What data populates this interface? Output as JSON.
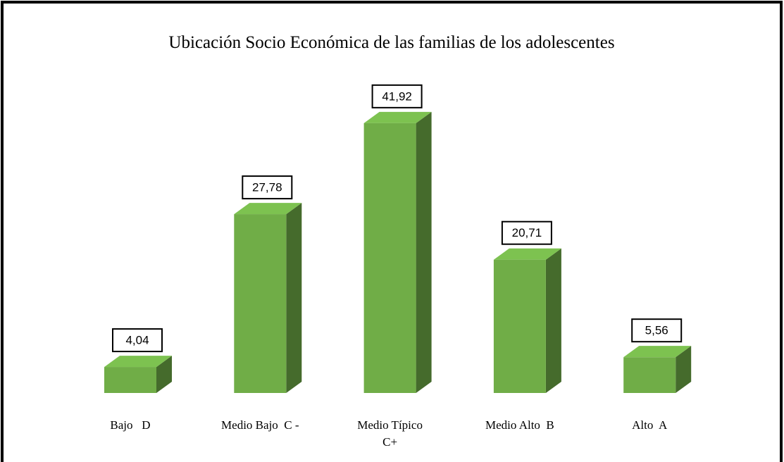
{
  "chart_data": {
    "type": "bar3d",
    "title": "Ubicación Socio Económica de las familias de los adolescentes",
    "categories": [
      "Bajo   D",
      "Medio Bajo  C -",
      "Medio Típico\nC+",
      "Medio Alto  B",
      "Alto  A"
    ],
    "values": [
      4.04,
      27.78,
      41.92,
      20.71,
      5.56
    ],
    "value_labels": [
      "4,04",
      "27,78",
      "41,92",
      "20,71",
      "5,56"
    ],
    "color": "#70ad47"
  }
}
